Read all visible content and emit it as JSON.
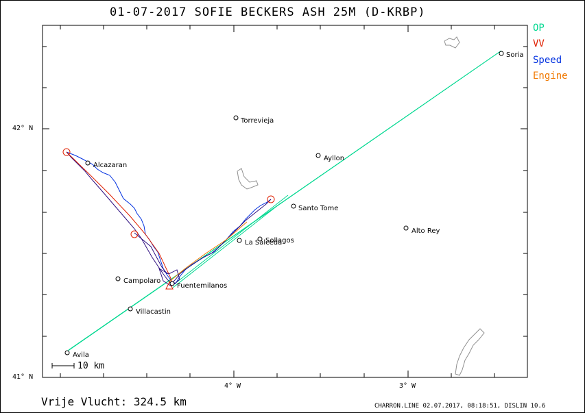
{
  "title": "01-07-2017   SOFIE BECKERS   ASH 25M (D-KRBP)",
  "legend": [
    {
      "label": "OP",
      "color": "#00d890"
    },
    {
      "label": "VV",
      "color": "#e02000"
    },
    {
      "label": "Speed",
      "color": "#0030e0"
    },
    {
      "label": "Engine",
      "color": "#f07800"
    }
  ],
  "axes": {
    "lat_labels": [
      "42° N",
      "41° N"
    ],
    "lon_labels": [
      "4° W",
      "3° W"
    ]
  },
  "scale_label": "10 km",
  "distance_text": "Vrije Vlucht:  324.5 km",
  "footer": "CHARRON.LINE 02.07.2017, 08:18:51, DISLIN 10.6",
  "towns": [
    "Soria",
    "Torrevieja",
    "Ayllon",
    "Alcazaran",
    "Santo Tome",
    "Alto Rey",
    "Sollagos",
    "La Salceda",
    "Campolaro",
    "Fuentemilanos",
    "Villacastin",
    "Avila"
  ],
  "colors": {
    "track": "#301080",
    "op": "#00d890",
    "vv": "#e02000",
    "speed": "#0030e0",
    "engine": "#f07800",
    "lake": "#909090"
  }
}
